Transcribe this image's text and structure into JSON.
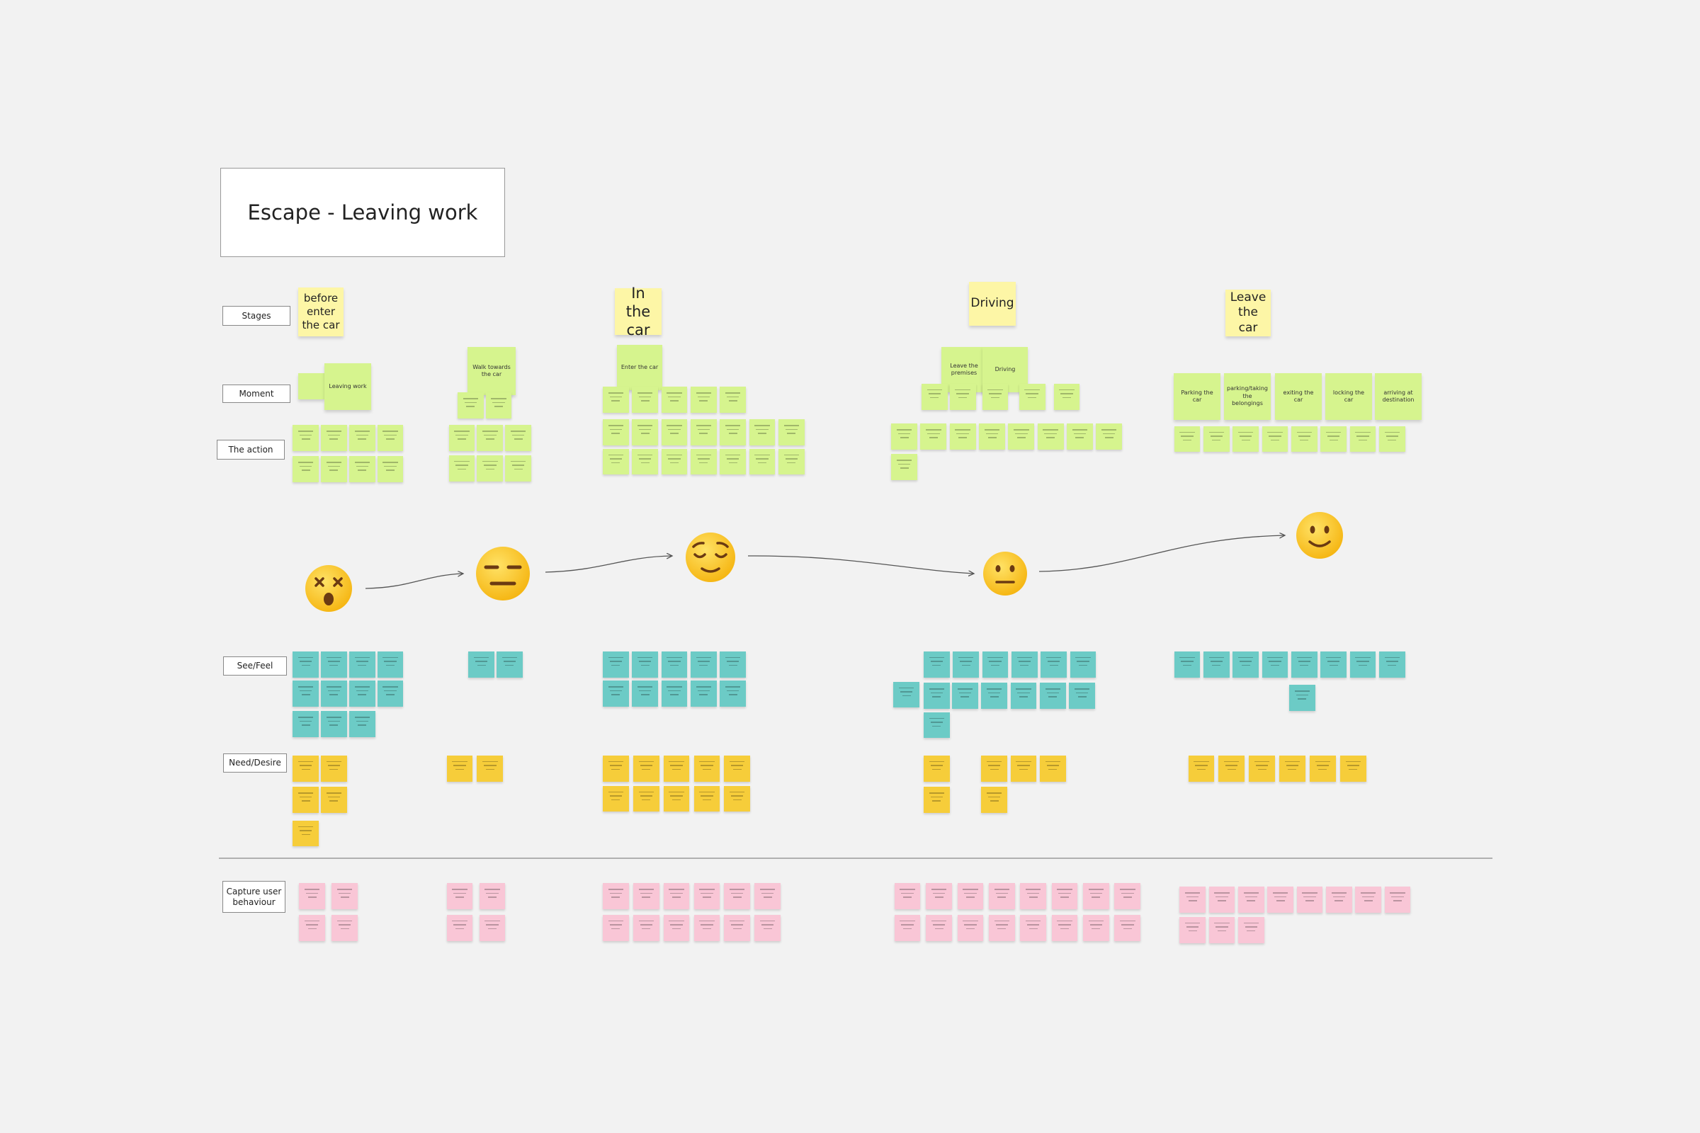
{
  "header": {
    "title": "Escape - Leaving work"
  },
  "row_labels": [
    "Stages",
    "Moment",
    "The action",
    "See/Feel",
    "Need/Desire",
    "Capture user behaviour"
  ],
  "stages": [
    "before enter the car",
    "In the car",
    "Driving",
    "Leave the car"
  ],
  "moments": [
    "Leaving work",
    "Walk towards the car",
    "Enter the car",
    "Leave the premises",
    "Driving",
    "Parking the car",
    "parking/taking the belongings",
    "exiting the car",
    "locking the car",
    "arriving at destination"
  ]
}
